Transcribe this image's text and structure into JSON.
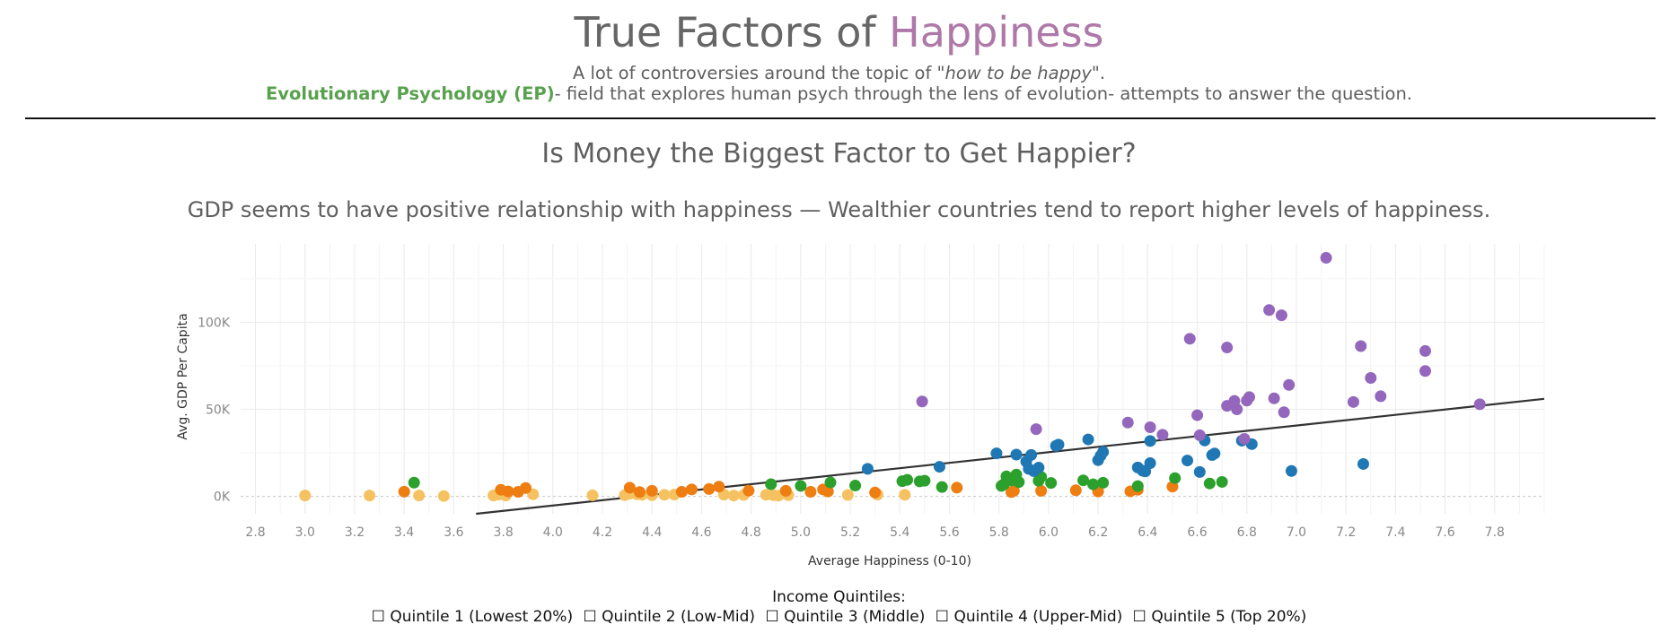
{
  "header": {
    "title_main": "True Factors of ",
    "title_accent": "Happiness",
    "line1_pre": "A lot of controversies around the topic of \"",
    "line1_em": "how to be happy",
    "line1_post": "\".",
    "line2_bold": "Evolutionary Psychology (EP)",
    "line2_rest": "- field that explores human psych through the lens of evolution- attempts to answer the question.",
    "accent_color": "#ae78a8",
    "ep_color": "#59a14f"
  },
  "section": {
    "title": "Is Money the Biggest Factor to Get Happier?",
    "subtitle": "GDP seems to have positive relationship with happiness — Wealthier countries tend to report higher levels of happiness."
  },
  "legend": {
    "title": "Income Quintiles:",
    "items": [
      {
        "label": "☐ Quintile 1 (Lowest 20%)"
      },
      {
        "label": "☐ Quintile 2 (Low-Mid)"
      },
      {
        "label": "☐ Quintile 3 (Middle)"
      },
      {
        "label": "☐ Quintile 4 (Upper-Mid)"
      },
      {
        "label": "☐ Quintile 5 (Top 20%)"
      }
    ]
  },
  "chart_data": {
    "type": "scatter",
    "xlabel": "Average Happiness (0-10)",
    "ylabel": "Avg. GDP Per Capita",
    "xlim": [
      2.74,
      8.0
    ],
    "ylim": [
      -10000,
      145000
    ],
    "x_ticks": [
      "2.8",
      "3.0",
      "3.2",
      "3.4",
      "3.6",
      "3.8",
      "4.0",
      "4.2",
      "4.4",
      "4.6",
      "4.8",
      "5.0",
      "5.2",
      "5.4",
      "5.6",
      "5.8",
      "6.0",
      "6.2",
      "6.4",
      "6.6",
      "6.8",
      "7.0",
      "7.2",
      "7.4",
      "7.6",
      "7.8"
    ],
    "y_ticks": [
      {
        "value": 0,
        "label": "0K"
      },
      {
        "value": 50000,
        "label": "50K"
      },
      {
        "value": 100000,
        "label": "100K"
      }
    ],
    "grid": true,
    "trendline": {
      "x": [
        3.69,
        8.0
      ],
      "y": [
        -10000,
        56000
      ],
      "color": "#333333"
    },
    "series": [
      {
        "color": "#f6c160",
        "points": [
          [
            3.0,
            500
          ],
          [
            3.26,
            500
          ],
          [
            3.46,
            500
          ],
          [
            3.56,
            200
          ],
          [
            3.76,
            500
          ],
          [
            3.78,
            1000
          ],
          [
            3.81,
            500
          ],
          [
            3.92,
            1200
          ],
          [
            4.16,
            600
          ],
          [
            4.29,
            700
          ],
          [
            4.31,
            1500
          ],
          [
            4.34,
            1200
          ],
          [
            4.36,
            900
          ],
          [
            4.4,
            700
          ],
          [
            4.45,
            900
          ],
          [
            4.49,
            1000
          ],
          [
            4.69,
            1000
          ],
          [
            4.73,
            500
          ],
          [
            4.77,
            800
          ],
          [
            4.86,
            900
          ],
          [
            4.89,
            700
          ],
          [
            4.91,
            400
          ],
          [
            4.95,
            700
          ],
          [
            5.19,
            800
          ],
          [
            5.31,
            1000
          ],
          [
            5.42,
            900
          ]
        ]
      },
      {
        "color": "#ee7d12",
        "points": [
          [
            3.4,
            2700
          ],
          [
            3.79,
            3800
          ],
          [
            3.82,
            2800
          ],
          [
            3.86,
            2600
          ],
          [
            3.89,
            4800
          ],
          [
            4.31,
            5000
          ],
          [
            4.35,
            2500
          ],
          [
            4.4,
            3200
          ],
          [
            4.52,
            2600
          ],
          [
            4.56,
            4000
          ],
          [
            4.63,
            4200
          ],
          [
            4.67,
            5600
          ],
          [
            4.79,
            3300
          ],
          [
            4.94,
            3200
          ],
          [
            5.04,
            2600
          ],
          [
            5.09,
            4000
          ],
          [
            5.11,
            2800
          ],
          [
            5.3,
            2200
          ],
          [
            5.63,
            5000
          ],
          [
            5.85,
            2500
          ],
          [
            5.86,
            3200
          ],
          [
            5.97,
            3200
          ],
          [
            6.11,
            3500
          ],
          [
            6.2,
            2800
          ],
          [
            6.33,
            2900
          ],
          [
            6.36,
            3800
          ],
          [
            6.5,
            5600
          ]
        ]
      },
      {
        "color": "#2ca02c",
        "points": [
          [
            3.44,
            7900
          ],
          [
            4.88,
            7000
          ],
          [
            5.0,
            6000
          ],
          [
            5.12,
            8000
          ],
          [
            5.22,
            6200
          ],
          [
            5.41,
            8700
          ],
          [
            5.43,
            9500
          ],
          [
            5.48,
            8600
          ],
          [
            5.5,
            9000
          ],
          [
            5.57,
            5400
          ],
          [
            5.81,
            6000
          ],
          [
            5.82,
            7000
          ],
          [
            5.83,
            11500
          ],
          [
            5.85,
            9200
          ],
          [
            5.87,
            12500
          ],
          [
            5.88,
            8200
          ],
          [
            5.96,
            9000
          ],
          [
            5.97,
            11200
          ],
          [
            6.01,
            7700
          ],
          [
            6.14,
            9200
          ],
          [
            6.18,
            6900
          ],
          [
            6.22,
            7800
          ],
          [
            6.36,
            5900
          ],
          [
            6.51,
            10500
          ],
          [
            6.65,
            7400
          ],
          [
            6.7,
            8300
          ]
        ]
      },
      {
        "color": "#1f77b4",
        "points": [
          [
            5.27,
            15800
          ],
          [
            5.56,
            17000
          ],
          [
            5.79,
            24700
          ],
          [
            5.87,
            24000
          ],
          [
            5.91,
            20000
          ],
          [
            5.92,
            15800
          ],
          [
            5.93,
            23800
          ],
          [
            5.94,
            14500
          ],
          [
            5.96,
            16500
          ],
          [
            6.03,
            29000
          ],
          [
            6.04,
            29700
          ],
          [
            6.16,
            32700
          ],
          [
            6.2,
            20800
          ],
          [
            6.21,
            23300
          ],
          [
            6.22,
            25500
          ],
          [
            6.36,
            16600
          ],
          [
            6.38,
            14700
          ],
          [
            6.39,
            14300
          ],
          [
            6.41,
            19100
          ],
          [
            6.41,
            31800
          ],
          [
            6.56,
            20600
          ],
          [
            6.61,
            14000
          ],
          [
            6.63,
            32100
          ],
          [
            6.66,
            23700
          ],
          [
            6.67,
            24600
          ],
          [
            6.78,
            32000
          ],
          [
            6.82,
            30000
          ],
          [
            6.98,
            14600
          ],
          [
            7.27,
            18600
          ]
        ]
      },
      {
        "color": "#9467bd",
        "points": [
          [
            5.49,
            54500
          ],
          [
            5.95,
            38600
          ],
          [
            6.32,
            42400
          ],
          [
            6.41,
            39700
          ],
          [
            6.46,
            35400
          ],
          [
            6.57,
            90500
          ],
          [
            6.6,
            46600
          ],
          [
            6.61,
            35100
          ],
          [
            6.72,
            85500
          ],
          [
            6.72,
            52000
          ],
          [
            6.75,
            54800
          ],
          [
            6.76,
            50000
          ],
          [
            6.79,
            33000
          ],
          [
            6.8,
            55000
          ],
          [
            6.81,
            57000
          ],
          [
            6.89,
            107000
          ],
          [
            6.91,
            56300
          ],
          [
            6.94,
            104000
          ],
          [
            6.95,
            48300
          ],
          [
            6.97,
            64000
          ],
          [
            7.12,
            137000
          ],
          [
            7.23,
            54200
          ],
          [
            7.26,
            86300
          ],
          [
            7.3,
            68000
          ],
          [
            7.34,
            57500
          ],
          [
            7.52,
            83500
          ],
          [
            7.52,
            72000
          ],
          [
            7.74,
            52900
          ]
        ]
      }
    ]
  }
}
